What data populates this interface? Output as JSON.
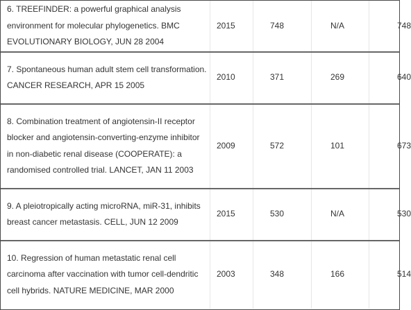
{
  "rows": [
    {
      "title": "6. TREEFINDER: a powerful graphical analysis environment for molecular phylogenetics. BMC EVOLUTIONARY BIOLOGY, JUN 28 2004",
      "year": "2015",
      "a": "748",
      "b": "N/A",
      "total": "748"
    },
    {
      "title": "7. Spontaneous human adult stem cell transformation. CANCER RESEARCH, APR 15 2005",
      "year": "2010",
      "a": "371",
      "b": "269",
      "total": "640"
    },
    {
      "title": "8. Combination treatment of angiotensin-II receptor blocker and angiotensin-converting-enzyme inhibitor in non-diabetic renal disease (COOPERATE): a randomised controlled trial. LANCET, JAN 11 2003",
      "year": "2009",
      "a": "572",
      "b": "101",
      "total": "673"
    },
    {
      "title": "9. A pleiotropically acting microRNA, miR-31, inhibits breast cancer metastasis. CELL, JUN 12 2009",
      "year": "2015",
      "a": "530",
      "b": "N/A",
      "total": "530"
    },
    {
      "title": "10. Regression of human metastatic renal cell carcinoma after vaccination with tumor cell-dendritic cell hybrids. NATURE MEDICINE, MAR 2000",
      "year": "2003",
      "a": "348",
      "b": "166",
      "total": "514"
    }
  ]
}
